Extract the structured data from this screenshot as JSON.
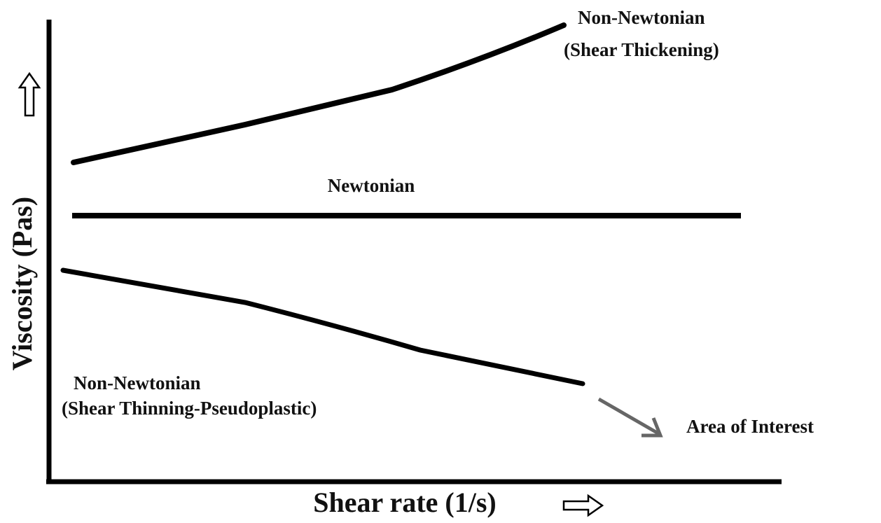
{
  "axes": {
    "x_label": "Shear rate (1/s)",
    "y_label": "Viscosity (Pas)"
  },
  "curves": [
    {
      "label": [
        "Non-Newtonian",
        "(Shear Thickening)"
      ]
    },
    {
      "label": [
        "Newtonian"
      ]
    },
    {
      "label": [
        "Non-Newtonian",
        "(Shear Thinning-Pseudoplastic)"
      ]
    }
  ],
  "annotation": "Area of Interest"
}
